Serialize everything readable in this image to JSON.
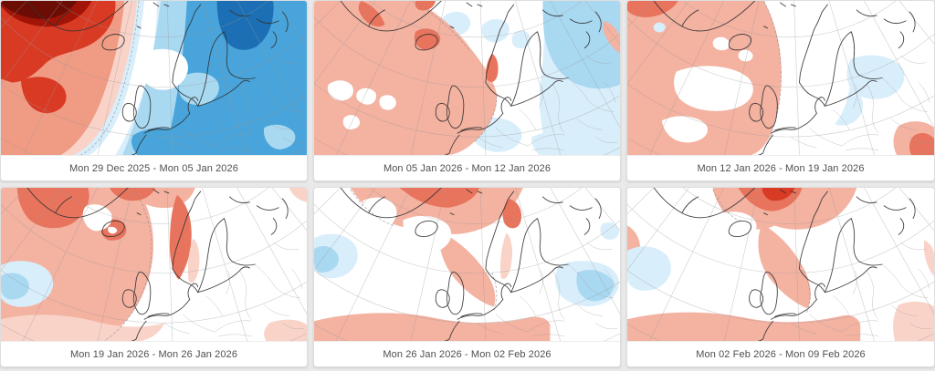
{
  "page": {
    "background": "#e9e9e9",
    "description_not_rendered": ""
  },
  "panels": [
    {
      "caption": "Mon 29 Dec 2025 - Mon 05 Jan 2026"
    },
    {
      "caption": "Mon 05 Jan 2026 - Mon 12 Jan 2026"
    },
    {
      "caption": "Mon 12 Jan 2026 - Mon 19 Jan 2026"
    },
    {
      "caption": "Mon 19 Jan 2026 - Mon 26 Jan 2026"
    },
    {
      "caption": "Mon 26 Jan 2026 - Mon 02 Feb 2026"
    },
    {
      "caption": "Mon 02 Feb 2026 - Mon 09 Feb 2026"
    }
  ],
  "palette": {
    "page_bg": "#e9e9e9",
    "card_bg": "#ffffff",
    "card_border": "#dedede",
    "caption_text": "#4f4f4f",
    "white": "#ffffff",
    "maroon": "#6b0d05",
    "red_dark": "#a01507",
    "red_strong": "#d93a24",
    "red_soft": "#e8745d",
    "salmon": "#f09b84",
    "salmon_light": "#f4b2a1",
    "pink_pale": "#f9d3c8",
    "blue_pale": "#d9eefb",
    "blue_light": "#a9d8f1",
    "blue_mid": "#48a4da",
    "blue_dark": "#1c6fb4",
    "coastline": "#333333",
    "country_border": "#999999",
    "graticule": "#9a9a9a"
  }
}
